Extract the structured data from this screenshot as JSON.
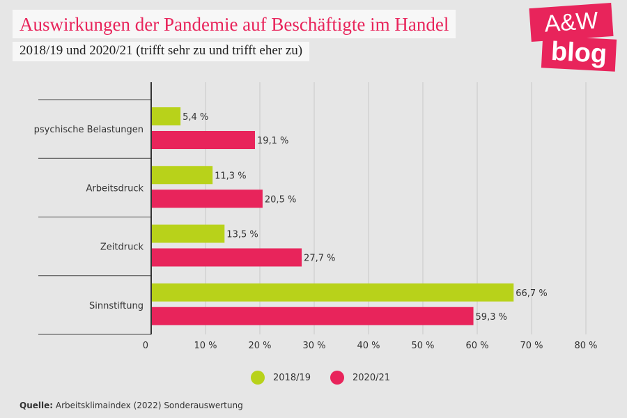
{
  "header": {
    "title": "Auswirkungen der Pandemie auf Beschäftigte im Handel",
    "subtitle": "2018/19 und 2020/21 (trifft sehr zu und trifft eher zu)"
  },
  "logo": {
    "line1": "A&W",
    "line2": "blog"
  },
  "colors": {
    "series1": "#b8d21a",
    "series2": "#e8245b",
    "accent": "#e8245b"
  },
  "chart_data": {
    "type": "bar",
    "orientation": "horizontal",
    "categories": [
      "psychische Belastungen",
      "Arbeitsdruck",
      "Zeitdruck",
      "Sinnstiftung"
    ],
    "series": [
      {
        "name": "2018/19",
        "values": [
          5.4,
          11.3,
          13.5,
          66.7
        ],
        "labels": [
          "5,4 %",
          "11,3 %",
          "13,5 %",
          "66,7 %"
        ]
      },
      {
        "name": "2020/21",
        "values": [
          19.1,
          20.5,
          27.7,
          59.3
        ],
        "labels": [
          "19,1 %",
          "20,5 %",
          "27,7 %",
          "59,3 %"
        ]
      }
    ],
    "xlim": [
      0,
      80
    ],
    "xticks": [
      "0",
      "10 %",
      "20 %",
      "30 %",
      "40 %",
      "50 %",
      "60 %",
      "70 %",
      "80 %"
    ],
    "grid": true,
    "legend_position": "bottom"
  },
  "source": {
    "label": "Quelle:",
    "text": " Arbeitsklimaindex (2022) Sonderauswertung"
  }
}
